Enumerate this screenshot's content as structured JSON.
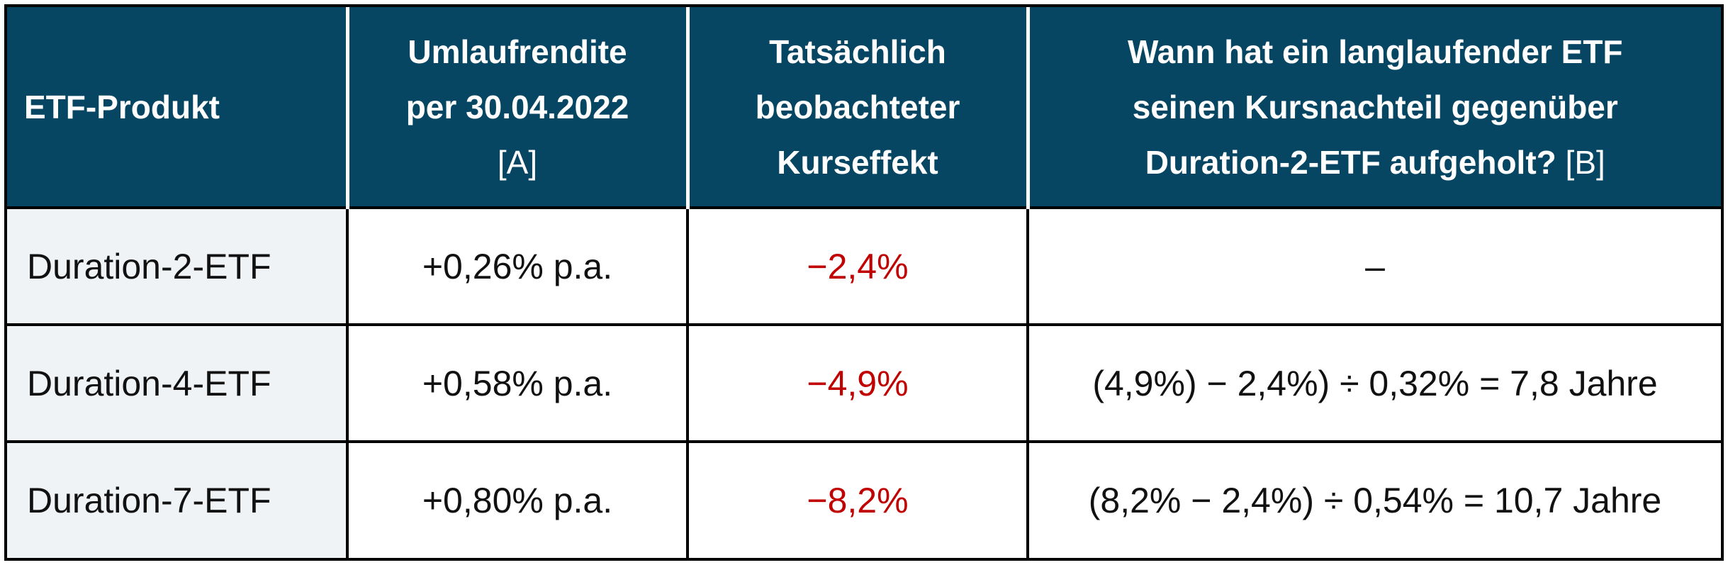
{
  "colors": {
    "header_background": "#064663",
    "header_text": "#ffffff",
    "negative_value": "#c00000",
    "first_column_background": "#f0f3f6"
  },
  "table": {
    "headers": {
      "product": "ETF-Produkt",
      "yield_line1": "Umlaufrendite",
      "yield_line2": "per 30.04.2022",
      "yield_ref": "[A]",
      "effect_line1": "Tatsächlich",
      "effect_line2": "beobachteter",
      "effect_line3": "Kurseffekt",
      "recovery_line1": "Wann hat ein langlaufender ETF",
      "recovery_line2": "seinen Kursnachteil gegenüber",
      "recovery_line3": "Duration-2-ETF aufgeholt?",
      "recovery_ref": "[B]"
    },
    "rows": [
      {
        "product": "Duration-2-ETF",
        "yield": "+0,26% p.a.",
        "effect": "−2,4%",
        "recovery": "–"
      },
      {
        "product": "Duration-4-ETF",
        "yield": "+0,58% p.a.",
        "effect": "−4,9%",
        "recovery": "(4,9%) − 2,4%) ÷ 0,32% = 7,8 Jahre"
      },
      {
        "product": "Duration-7-ETF",
        "yield": "+0,80% p.a.",
        "effect": "−8,2%",
        "recovery": "(8,2% − 2,4%) ÷ 0,54% = 10,7 Jahre"
      }
    ]
  }
}
